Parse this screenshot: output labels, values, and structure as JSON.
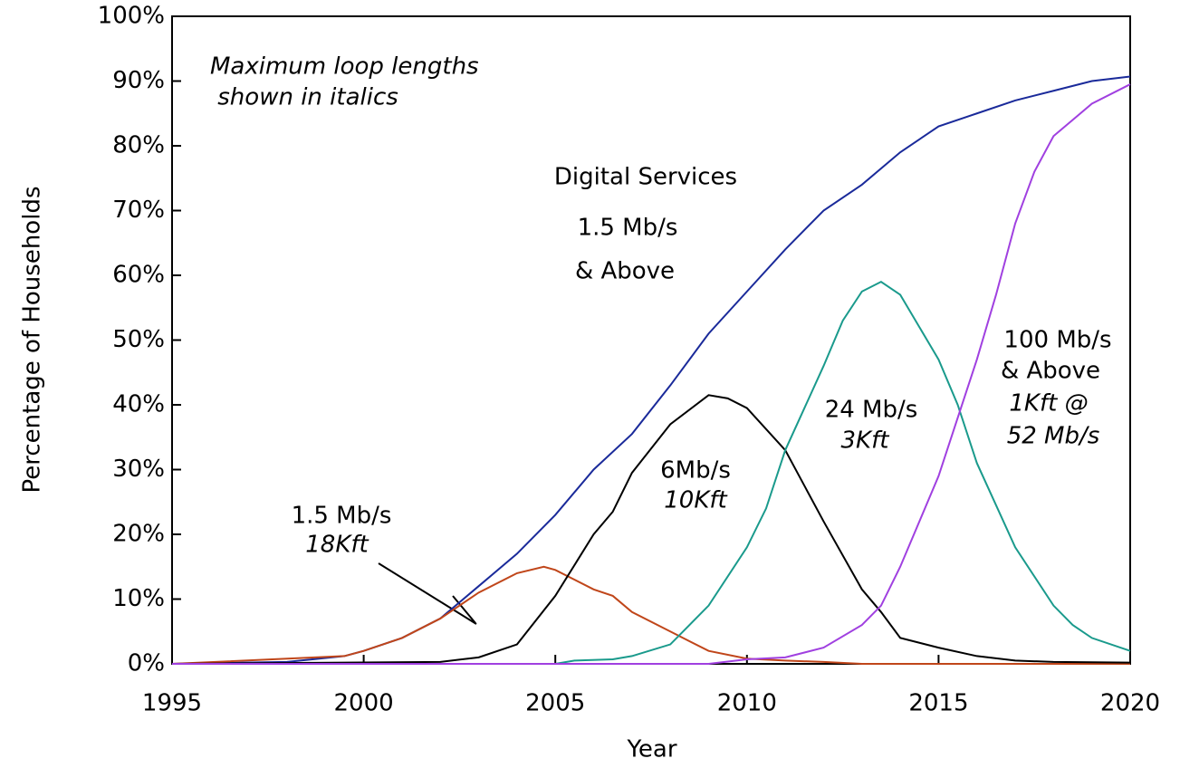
{
  "chart_data": {
    "type": "line",
    "xlabel": "Year",
    "ylabel": "Percentage of Households",
    "xlim": [
      1995,
      2020
    ],
    "xticks": [
      1995,
      2000,
      2005,
      2010,
      2015,
      2020
    ],
    "ylim": [
      0,
      100
    ],
    "yticks": [
      {
        "value": 0,
        "label": "0%"
      },
      {
        "value": 10,
        "label": "10%"
      },
      {
        "value": 20,
        "label": "20%"
      },
      {
        "value": 30,
        "label": "30%"
      },
      {
        "value": 40,
        "label": "40%"
      },
      {
        "value": 50,
        "label": "50%"
      },
      {
        "value": 60,
        "label": "60%"
      },
      {
        "value": 70,
        "label": "70%"
      },
      {
        "value": 80,
        "label": "80%"
      },
      {
        "value": 90,
        "label": "90%"
      },
      {
        "value": 100,
        "label": "100%"
      }
    ],
    "series": [
      {
        "color": "#1a2a9a",
        "x": [
          1995,
          1998,
          1999.5,
          2000,
          2001,
          2002,
          2003,
          2004,
          2005,
          2006,
          2007,
          2008,
          2009,
          2010,
          2011,
          2012,
          2013,
          2014,
          2015,
          2016,
          2017,
          2018,
          2019,
          2020
        ],
        "values": [
          0,
          0.3,
          1.2,
          2,
          4,
          7,
          12,
          17,
          23,
          30,
          35.5,
          43,
          51,
          57.5,
          64,
          70,
          74,
          79,
          83,
          85,
          87,
          88.5,
          90,
          90.7
        ]
      },
      {
        "color": "#c0461a",
        "x": [
          1995,
          1999.5,
          2000,
          2001,
          2002,
          2003,
          2004,
          2004.7,
          2005,
          2006,
          2006.5,
          2007,
          2008,
          2009,
          2010,
          2011,
          2012,
          2013,
          2020
        ],
        "values": [
          0,
          1.2,
          2,
          4,
          7,
          11,
          14,
          15,
          14.5,
          11.5,
          10.5,
          8,
          5,
          2,
          0.8,
          0.5,
          0.3,
          0,
          0
        ]
      },
      {
        "color": "#000000",
        "x": [
          1995,
          2002,
          2003,
          2004,
          2005,
          2006,
          2006.5,
          2007,
          2008,
          2009,
          2009.5,
          2010,
          2011,
          2012,
          2013,
          2013.5,
          2014,
          2015,
          2016,
          2017,
          2018,
          2020
        ],
        "values": [
          0,
          0.3,
          1,
          3,
          10.5,
          20,
          23.5,
          29.5,
          37,
          41.5,
          41,
          39.5,
          33,
          22,
          11.5,
          8,
          4,
          2.5,
          1.2,
          0.5,
          0.3,
          0.2
        ]
      },
      {
        "color": "#1a9a8c",
        "x": [
          1995,
          2005,
          2005.5,
          2006.5,
          2007,
          2008,
          2009,
          2010,
          2010.5,
          2011,
          2012,
          2012.5,
          2013,
          2013.5,
          2014,
          2015,
          2015.5,
          2016,
          2017,
          2018,
          2018.5,
          2019,
          2020
        ],
        "values": [
          0,
          0,
          0.5,
          0.7,
          1.2,
          3,
          9,
          18,
          24,
          33,
          46,
          53,
          57.5,
          59,
          57,
          47,
          40,
          31,
          18,
          9,
          6,
          4,
          2
        ]
      },
      {
        "color": "#a040e0",
        "x": [
          1995,
          2009,
          2010,
          2011,
          2012,
          2013,
          2013.5,
          2014,
          2015,
          2016,
          2016.5,
          2017,
          2017.5,
          2018,
          2019,
          2020
        ],
        "values": [
          0,
          0,
          0.7,
          1,
          2.5,
          6,
          9,
          15,
          29,
          47,
          57,
          68,
          76,
          81.5,
          86.5,
          89.5
        ]
      }
    ],
    "annotations": [
      "Maximum loop lengths",
      " shown in italics",
      "Digital Services",
      "1.5 Mb/s",
      "& Above",
      "1.5 Mb/s",
      "18Kft",
      "6Mb/s",
      "10Kft",
      "24 Mb/s",
      "3Kft",
      "100 Mb/s",
      "& Above",
      "1Kft @",
      "52 Mb/s"
    ]
  }
}
